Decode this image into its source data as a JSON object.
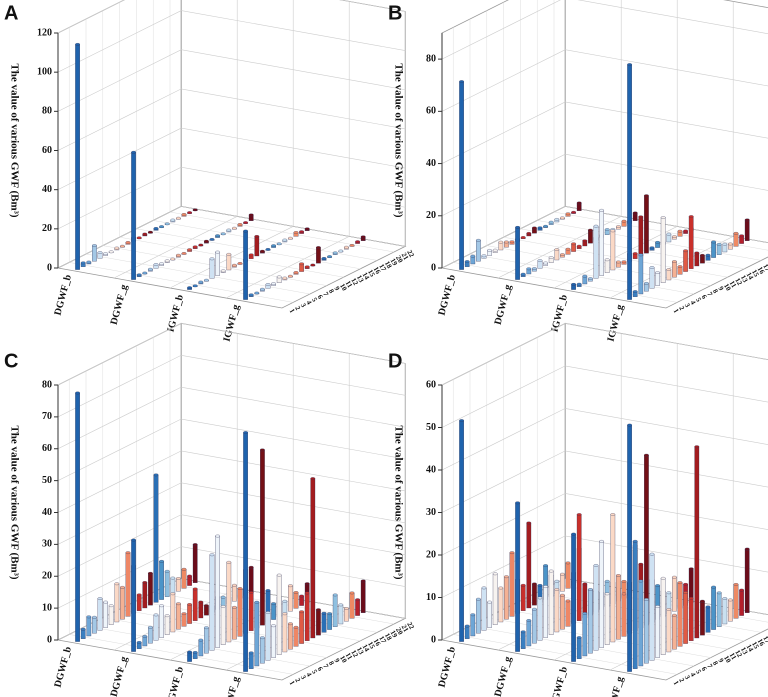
{
  "row_colors": [
    "#1f63ad",
    "#3a7fc1",
    "#6ea6d6",
    "#a3c8e6",
    "#cfe2f3",
    "#eef4fa",
    "#f7f3f0",
    "#fbd9c6",
    "#f5b193",
    "#ee8766",
    "#e05b45",
    "#c9302b",
    "#a31c1f",
    "#741016",
    "#2a6fb5",
    "#4b94c8",
    "#8fc0e0",
    "#c9e0f0",
    "#fcd4bf",
    "#ee8a64",
    "#b51f2b",
    "#6b0c1a"
  ],
  "chart_data": [
    {
      "type": "bar3d",
      "panel": "A",
      "y_label": "The value of various GWF (Bm³)",
      "categories": [
        "DGWF_b",
        "DGWF_g",
        "IGWF_b",
        "IGWF_g"
      ],
      "rows": [
        1,
        2,
        3,
        4,
        5,
        6,
        7,
        8,
        9,
        10,
        11,
        12,
        13,
        14,
        15,
        16,
        17,
        18,
        19,
        20,
        21,
        22
      ],
      "ylim": [
        0,
        120
      ],
      "yticks": [
        0,
        20,
        40,
        60,
        80,
        100,
        120
      ],
      "values": [
        [
          115,
          2,
          1,
          8,
          3,
          1,
          0.5,
          1,
          0.5,
          1,
          2,
          0.5,
          1,
          0.5,
          1,
          0.5,
          0.5,
          1,
          0.5,
          1,
          0.5,
          0.5
        ],
        [
          65,
          1,
          0.5,
          1,
          2,
          1,
          1,
          0.5,
          1,
          0.5,
          1,
          1,
          0.5,
          1,
          0.5,
          1,
          0.5,
          1,
          0.5,
          1,
          0.5,
          3
        ],
        [
          1,
          0.5,
          1,
          0.5,
          10,
          12,
          1,
          8,
          1,
          0.5,
          1,
          2,
          10,
          1,
          0.5,
          1,
          0.5,
          1,
          0.5,
          2,
          1,
          1
        ],
        [
          35,
          1,
          0.5,
          1,
          2,
          1,
          3,
          1,
          0.5,
          1,
          4,
          1,
          0.5,
          8,
          1,
          0.5,
          1,
          0.5,
          1,
          0.5,
          1,
          2
        ]
      ]
    },
    {
      "type": "bar3d",
      "panel": "B",
      "y_label": "The value of various GWF (Bm³)",
      "categories": [
        "DGWF_b",
        "DGWF_g",
        "IGWF_b",
        "IGWF_g"
      ],
      "rows": [
        1,
        2,
        3,
        4,
        5,
        6,
        7,
        8,
        9,
        10,
        11,
        12,
        13,
        14,
        15,
        16,
        17,
        18,
        19,
        20,
        21,
        22
      ],
      "ylim": [
        0,
        90
      ],
      "yticks": [
        0,
        20,
        40,
        60,
        80
      ],
      "values": [
        [
          72,
          2,
          3,
          8,
          1,
          2,
          1,
          3,
          2,
          1,
          1,
          0.5,
          1,
          2,
          1,
          0.5,
          1,
          1,
          0.5,
          1,
          0.5,
          3
        ],
        [
          20,
          1,
          2,
          1,
          3,
          1,
          2,
          4,
          1,
          2,
          3,
          1,
          2,
          5,
          1,
          1,
          2,
          1,
          1,
          2,
          1,
          3
        ],
        [
          2,
          1,
          3,
          1,
          20,
          25,
          5,
          15,
          2,
          1,
          3,
          2,
          15,
          22,
          1,
          2,
          1,
          3,
          1,
          2,
          1,
          1
        ],
        [
          90,
          2,
          15,
          3,
          8,
          5,
          25,
          4,
          6,
          3,
          8,
          20,
          5,
          3,
          2,
          6,
          4,
          3,
          2,
          5,
          3,
          8
        ]
      ]
    },
    {
      "type": "bar3d",
      "panel": "C",
      "y_label": "The value of various GWF (Bm³)",
      "categories": [
        "DGWF_b",
        "DGWF_g",
        "IGWF_b",
        "IGWF_g"
      ],
      "rows": [
        1,
        2,
        3,
        4,
        5,
        6,
        7,
        8,
        9,
        10,
        11,
        12,
        13,
        14,
        15,
        16,
        17,
        18,
        19,
        20,
        21,
        22
      ],
      "ylim": [
        0,
        80
      ],
      "yticks": [
        0,
        10,
        20,
        30,
        40,
        50,
        60,
        70,
        80
      ],
      "values": [
        [
          78,
          3,
          6,
          5,
          10,
          8,
          6,
          12,
          10,
          20,
          15,
          5,
          8,
          10,
          40,
          12,
          8,
          5,
          4,
          6,
          3,
          12
        ],
        [
          35,
          2,
          3,
          5,
          8,
          10,
          6,
          12,
          8,
          4,
          6,
          10,
          5,
          3,
          2,
          4,
          3,
          2,
          5,
          3,
          2,
          8
        ],
        [
          3,
          2,
          5,
          8,
          30,
          35,
          12,
          25,
          10,
          15,
          20,
          12,
          8,
          55,
          10,
          5,
          6,
          4,
          8,
          5,
          3,
          6
        ],
        [
          75,
          5,
          20,
          8,
          15,
          10,
          25,
          12,
          8,
          6,
          10,
          15,
          50,
          8,
          6,
          5,
          10,
          6,
          4,
          8,
          5,
          10
        ]
      ]
    },
    {
      "type": "bar3d",
      "panel": "D",
      "y_label": "The value of various GWF (Bm³)",
      "categories": [
        "DGWF_b",
        "DGWF_g",
        "IGWF_b",
        "IGWF_g"
      ],
      "rows": [
        1,
        2,
        3,
        4,
        5,
        6,
        7,
        8,
        9,
        10,
        11,
        12,
        13,
        14,
        15,
        16,
        17,
        18,
        19,
        20,
        21,
        22
      ],
      "ylim": [
        0,
        60
      ],
      "yticks": [
        0,
        10,
        20,
        30,
        40,
        50,
        60
      ],
      "values": [
        [
          52,
          3,
          5,
          8,
          10,
          6,
          12,
          8,
          10,
          15,
          8,
          6,
          20,
          5,
          4,
          8,
          5,
          3,
          4,
          6,
          3,
          8
        ],
        [
          35,
          4,
          6,
          8,
          10,
          12,
          15,
          10,
          8,
          6,
          10,
          25,
          8,
          6,
          5,
          4,
          6,
          5,
          3,
          4,
          3,
          10
        ],
        [
          30,
          5,
          10,
          15,
          20,
          25,
          12,
          30,
          15,
          10,
          12,
          20,
          15,
          40,
          10,
          8,
          6,
          5,
          8,
          6,
          5,
          8
        ],
        [
          58,
          30,
          20,
          15,
          25,
          12,
          18,
          10,
          8,
          15,
          12,
          10,
          45,
          8,
          6,
          10,
          8,
          6,
          5,
          8,
          6,
          15
        ]
      ]
    }
  ]
}
